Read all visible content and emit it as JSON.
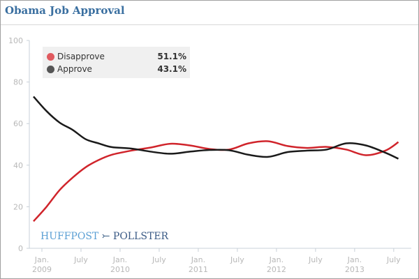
{
  "title": "Obama Job Approval",
  "logo": {
    "left": "HUFFPOST",
    "right": "POLLSTER"
  },
  "chart_data": {
    "type": "line",
    "ylim": [
      0,
      100
    ],
    "yticks": [
      "0",
      "20",
      "40",
      "60",
      "80",
      "100"
    ],
    "xticks": [
      {
        "date": "2009-01",
        "l1": "Jan.",
        "l2": "2009"
      },
      {
        "date": "2009-07",
        "l1": "July",
        "l2": ""
      },
      {
        "date": "2010-01",
        "l1": "Jan.",
        "l2": "2010"
      },
      {
        "date": "2010-07",
        "l1": "July",
        "l2": ""
      },
      {
        "date": "2011-01",
        "l1": "Jan.",
        "l2": "2011"
      },
      {
        "date": "2011-07",
        "l1": "July",
        "l2": ""
      },
      {
        "date": "2012-01",
        "l1": "Jan.",
        "l2": "2012"
      },
      {
        "date": "2012-07",
        "l1": "July",
        "l2": ""
      },
      {
        "date": "2013-01",
        "l1": "Jan.",
        "l2": "2013"
      },
      {
        "date": "2013-07",
        "l1": "July",
        "l2": ""
      }
    ],
    "grid": false,
    "legend_position": "top-left",
    "x": [
      "2009-01",
      "2009-03",
      "2009-05",
      "2009-07",
      "2009-09",
      "2009-11",
      "2010-01",
      "2010-04",
      "2010-07",
      "2010-10",
      "2011-01",
      "2011-04",
      "2011-07",
      "2011-10",
      "2012-01",
      "2012-04",
      "2012-07",
      "2012-10",
      "2013-01",
      "2013-04",
      "2013-07",
      "2013-09"
    ],
    "series": [
      {
        "name": "Disapprove",
        "color": "#d0242b",
        "legend_color": "#e05a5f",
        "label": "51.1%",
        "values": [
          13,
          20,
          28,
          34,
          39,
          42.5,
          45,
          47,
          48.5,
          50.3,
          49.5,
          47.8,
          47.5,
          50.5,
          51.5,
          49.2,
          48.3,
          48.8,
          47.5,
          44.8,
          47,
          51.1
        ]
      },
      {
        "name": "Approve",
        "color": "#1a1a1a",
        "legend_color": "#555555",
        "label": "43.1%",
        "values": [
          73,
          66,
          60.5,
          57,
          52.5,
          50.5,
          48.7,
          48,
          46.5,
          45.5,
          46.5,
          47.3,
          47.2,
          45,
          44,
          46.3,
          47,
          47.5,
          50.5,
          49.5,
          46,
          43.1
        ]
      }
    ]
  }
}
